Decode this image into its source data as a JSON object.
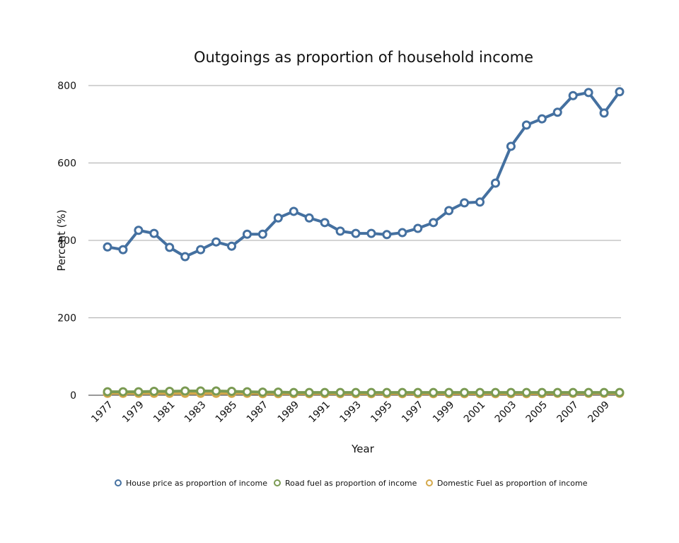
{
  "chart_data": {
    "type": "line",
    "title": "Outgoings as proportion of household income",
    "x_label": "Year",
    "y_label": "Percent (%)",
    "categories": [
      "1977",
      null,
      "1979",
      null,
      "1981",
      null,
      "1983",
      null,
      "1985",
      null,
      "1987",
      null,
      "1989",
      null,
      "1991",
      null,
      "1993",
      null,
      "1995",
      null,
      "1997",
      null,
      "1999",
      null,
      "2001",
      null,
      "2003",
      null,
      "2005",
      null,
      "2007",
      null,
      "2009",
      null
    ],
    "series": [
      {
        "name": "House price as proportion of income",
        "color": "#4470a0",
        "values": [
          383,
          376,
          426,
          418,
          382,
          358,
          376,
          396,
          385,
          416,
          416,
          458,
          475,
          458,
          446,
          424,
          418,
          418,
          415,
          420,
          431,
          446,
          477,
          497,
          499,
          548,
          643,
          698,
          714,
          731,
          774,
          782,
          729,
          784
        ]
      },
      {
        "name": "Domestic Fuel as proportion of income",
        "color": "#d4a84a",
        "values": [
          5,
          5,
          5,
          5,
          5,
          5,
          5,
          5,
          5,
          5,
          4,
          4,
          4,
          4,
          4,
          4,
          4,
          4,
          4,
          4,
          4,
          4,
          4,
          4,
          4,
          4,
          4,
          4,
          4,
          5,
          5,
          5,
          5,
          5
        ]
      },
      {
        "name": "Road fuel as proportion of income",
        "color": "#7a9a52",
        "values": [
          9,
          9,
          9,
          10,
          10,
          11,
          11,
          11,
          10,
          9,
          8,
          8,
          7,
          7,
          7,
          7,
          7,
          7,
          7,
          7,
          7,
          7,
          7,
          7,
          7,
          7,
          7,
          7,
          7,
          7,
          7,
          7,
          7,
          7
        ]
      }
    ],
    "legend_order": [
      0,
      2,
      1
    ],
    "ylim": [
      0,
      800
    ],
    "yticks": [
      0,
      200,
      400,
      600,
      800
    ],
    "grid": true
  }
}
